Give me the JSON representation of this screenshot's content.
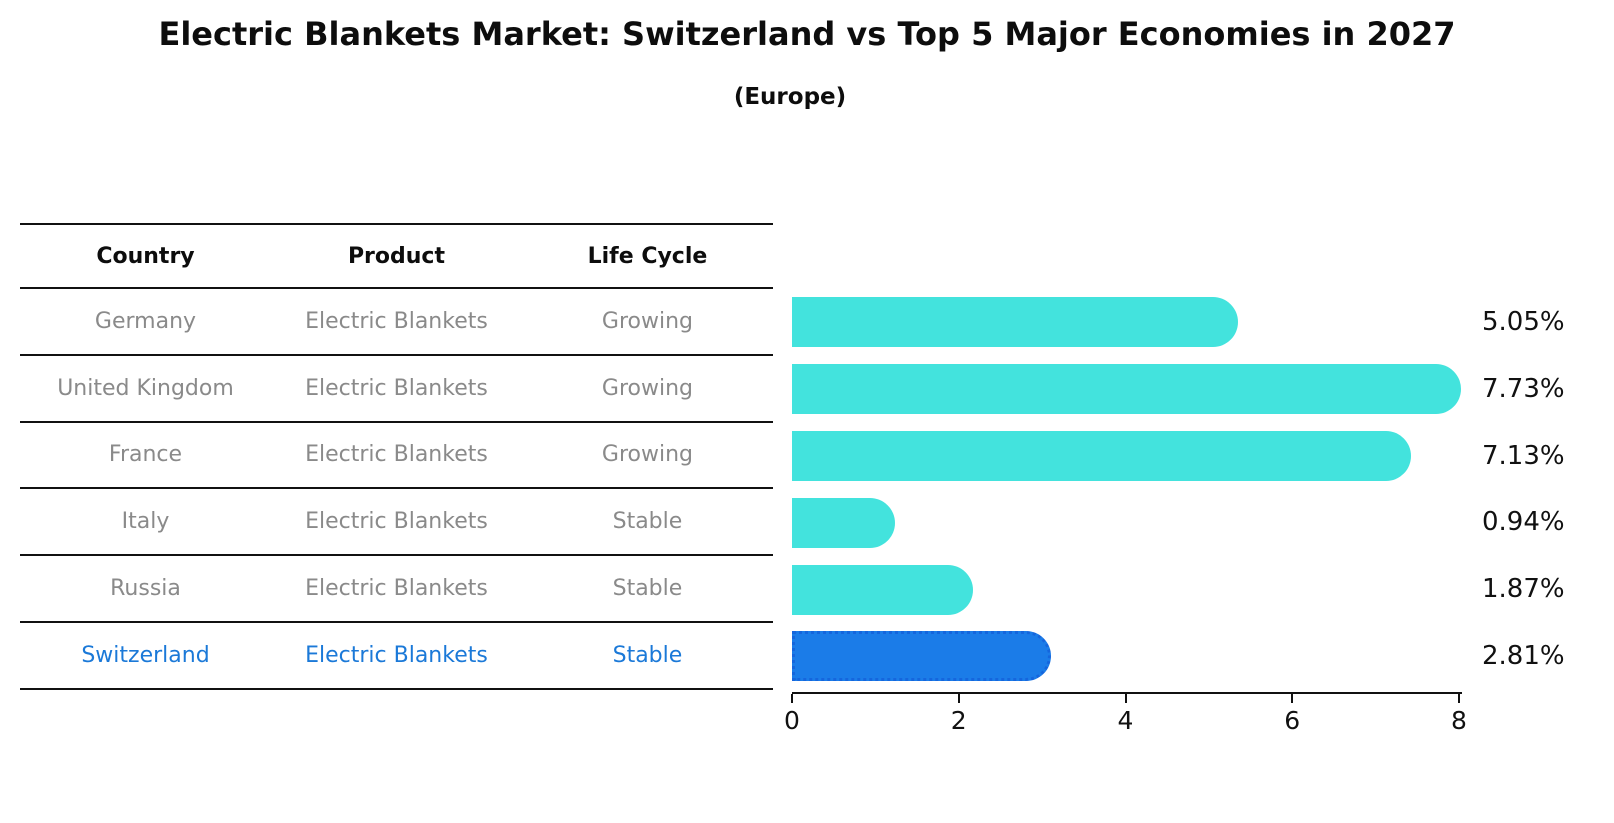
{
  "title": "Electric Blankets Market: Switzerland vs Top 5 Major Economies in 2027",
  "subtitle": "(Europe)",
  "table": {
    "headers": [
      "Country",
      "Product",
      "Life Cycle"
    ],
    "rows": [
      {
        "country": "Germany",
        "product": "Electric Blankets",
        "life_cycle": "Growing",
        "highlighted": false
      },
      {
        "country": "United Kingdom",
        "product": "Electric Blankets",
        "life_cycle": "Growing",
        "highlighted": false
      },
      {
        "country": "France",
        "product": "Electric Blankets",
        "life_cycle": "Growing",
        "highlighted": false
      },
      {
        "country": "Italy",
        "product": "Electric Blankets",
        "life_cycle": "Stable",
        "highlighted": false
      },
      {
        "country": "Russia",
        "product": "Electric Blankets",
        "life_cycle": "Stable",
        "highlighted": false
      },
      {
        "country": "Switzerland",
        "product": "Electric Blankets",
        "life_cycle": "Stable",
        "highlighted": true
      }
    ]
  },
  "chart_data": {
    "type": "bar",
    "orientation": "horizontal",
    "title": "Electric Blankets Market: Switzerland vs Top 5 Major Economies in 2027 (Europe)",
    "categories": [
      "Germany",
      "United Kingdom",
      "France",
      "Italy",
      "Russia",
      "Switzerland"
    ],
    "values": [
      5.05,
      7.73,
      7.13,
      0.94,
      1.87,
      2.81
    ],
    "value_labels": [
      "5.05%",
      "7.73%",
      "7.13%",
      "0.94%",
      "1.87%",
      "2.81%"
    ],
    "xlabel": "",
    "ylabel": "",
    "xlim": [
      0,
      8
    ],
    "xticks": [
      "0",
      "2",
      "4",
      "6",
      "8"
    ],
    "grid": false,
    "legend": false,
    "highlight_index": 5
  },
  "colors": {
    "bar": "#43E3DD",
    "highlight_bar": "#1B7CE8",
    "highlight_edge": "#1566DD",
    "highlight_text": "#1B79D8",
    "text": "#111111",
    "muted_text": "#8A8A8A"
  }
}
